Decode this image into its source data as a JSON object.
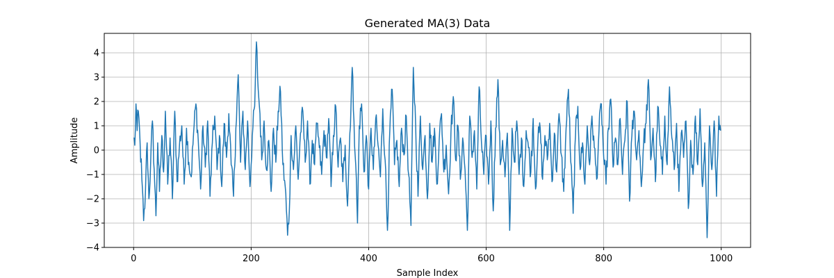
{
  "chart_data": {
    "type": "line",
    "title": "Generated MA(3) Data",
    "xlabel": "Sample Index",
    "ylabel": "Amplitude",
    "xlim": [
      -50,
      1050
    ],
    "ylim": [
      -4,
      4.8
    ],
    "xticks": [
      0,
      200,
      400,
      600,
      800,
      1000
    ],
    "xtick_labels": [
      "0",
      "200",
      "400",
      "600",
      "800",
      "1000"
    ],
    "yticks": [
      -4,
      -3,
      -2,
      -1,
      0,
      1,
      2,
      3,
      4
    ],
    "ytick_labels": [
      "−4",
      "−3",
      "−2",
      "−1",
      "0",
      "1",
      "2",
      "3",
      "4"
    ],
    "grid": true,
    "series": [
      {
        "color": "#1f77b4",
        "x_start": 0,
        "x_step": 1,
        "n_points": 1000,
        "anchors": [
          [
            0,
            0.5
          ],
          [
            2,
            0.2
          ],
          [
            4,
            1.9
          ],
          [
            6,
            0.8
          ],
          [
            8,
            1.6
          ],
          [
            11,
            0.3
          ],
          [
            14,
            -1.2
          ],
          [
            17,
            -2.9
          ],
          [
            19,
            -2.4
          ],
          [
            21,
            -0.9
          ],
          [
            23,
            0.3
          ],
          [
            26,
            -2.0
          ],
          [
            29,
            -0.5
          ],
          [
            32,
            1.2
          ],
          [
            35,
            -0.8
          ],
          [
            38,
            -2.7
          ],
          [
            41,
            0.3
          ],
          [
            44,
            -1.7
          ],
          [
            48,
            0.6
          ],
          [
            51,
            -0.9
          ],
          [
            54,
            1.6
          ],
          [
            58,
            -1.4
          ],
          [
            62,
            0.5
          ],
          [
            66,
            -2.0
          ],
          [
            70,
            1.6
          ],
          [
            74,
            -1.3
          ],
          [
            78,
            0.2
          ],
          [
            82,
            1.0
          ],
          [
            86,
            -1.4
          ],
          [
            90,
            0.9
          ],
          [
            94,
            -0.5
          ],
          [
            98,
            -1.1
          ],
          [
            102,
            0.7
          ],
          [
            106,
            1.9
          ],
          [
            110,
            0.4
          ],
          [
            114,
            -1.6
          ],
          [
            118,
            1.0
          ],
          [
            122,
            -0.7
          ],
          [
            126,
            1.2
          ],
          [
            130,
            -1.9
          ],
          [
            134,
            0.3
          ],
          [
            138,
            1.4
          ],
          [
            142,
            -0.8
          ],
          [
            146,
            0.6
          ],
          [
            150,
            -1.5
          ],
          [
            154,
            1.1
          ],
          [
            158,
            -0.3
          ],
          [
            162,
            1.5
          ],
          [
            166,
            -0.6
          ],
          [
            170,
            -1.9
          ],
          [
            174,
            0.9
          ],
          [
            178,
            3.1
          ],
          [
            182,
            -0.5
          ],
          [
            186,
            1.6
          ],
          [
            190,
            -0.8
          ],
          [
            194,
            1.2
          ],
          [
            198,
            -1.5
          ],
          [
            202,
            0.6
          ],
          [
            206,
            1.8
          ],
          [
            209,
            4.45
          ],
          [
            212,
            2.5
          ],
          [
            215,
            1.5
          ],
          [
            218,
            -0.4
          ],
          [
            222,
            1.2
          ],
          [
            226,
            -0.8
          ],
          [
            230,
            0.4
          ],
          [
            234,
            -1.7
          ],
          [
            238,
            0.9
          ],
          [
            242,
            -0.5
          ],
          [
            246,
            1.6
          ],
          [
            250,
            2.4
          ],
          [
            254,
            -0.6
          ],
          [
            258,
            -1.5
          ],
          [
            262,
            -3.5
          ],
          [
            265,
            -2.5
          ],
          [
            268,
            0.6
          ],
          [
            272,
            -0.8
          ],
          [
            276,
            1.0
          ],
          [
            280,
            -1.2
          ],
          [
            284,
            0.7
          ],
          [
            288,
            1.6
          ],
          [
            292,
            -0.5
          ],
          [
            296,
            1.2
          ],
          [
            300,
            -1.4
          ],
          [
            304,
            0.4
          ],
          [
            308,
            -0.6
          ],
          [
            312,
            1.1
          ],
          [
            316,
            0.1
          ],
          [
            320,
            -1.0
          ],
          [
            324,
            0.8
          ],
          [
            328,
            -0.3
          ],
          [
            332,
            1.3
          ],
          [
            336,
            -1.5
          ],
          [
            340,
            0.6
          ],
          [
            344,
            1.8
          ],
          [
            348,
            -0.7
          ],
          [
            352,
            0.5
          ],
          [
            356,
            -1.3
          ],
          [
            360,
            0.2
          ],
          [
            364,
            -2.3
          ],
          [
            368,
            0.7
          ],
          [
            372,
            3.4
          ],
          [
            375,
            1.2
          ],
          [
            378,
            -0.6
          ],
          [
            381,
            -3.0
          ],
          [
            384,
            1.0
          ],
          [
            388,
            1.9
          ],
          [
            392,
            -0.9
          ],
          [
            396,
            0.6
          ],
          [
            400,
            -1.6
          ],
          [
            404,
            0.9
          ],
          [
            408,
            -0.8
          ],
          [
            412,
            1.3
          ],
          [
            416,
            0.2
          ],
          [
            420,
            -1.1
          ],
          [
            424,
            1.7
          ],
          [
            428,
            -0.4
          ],
          [
            432,
            -3.3
          ],
          [
            436,
            0.8
          ],
          [
            440,
            2.5
          ],
          [
            444,
            -0.6
          ],
          [
            448,
            0.4
          ],
          [
            452,
            -1.5
          ],
          [
            456,
            0.9
          ],
          [
            460,
            -0.2
          ],
          [
            464,
            1.4
          ],
          [
            468,
            -1.0
          ],
          [
            472,
            -3.1
          ],
          [
            476,
            3.4
          ],
          [
            480,
            1.0
          ],
          [
            484,
            -1.9
          ],
          [
            488,
            1.4
          ],
          [
            492,
            -0.8
          ],
          [
            496,
            0.6
          ],
          [
            500,
            -2.0
          ],
          [
            504,
            1.1
          ],
          [
            508,
            -0.5
          ],
          [
            512,
            0.9
          ],
          [
            516,
            -1.4
          ],
          [
            520,
            0.4
          ],
          [
            524,
            1.5
          ],
          [
            528,
            -0.9
          ],
          [
            532,
            0.2
          ],
          [
            536,
            -1.8
          ],
          [
            540,
            0.7
          ],
          [
            544,
            2.2
          ],
          [
            548,
            -0.4
          ],
          [
            552,
            1.0
          ],
          [
            556,
            -1.2
          ],
          [
            560,
            0.5
          ],
          [
            564,
            -0.8
          ],
          [
            568,
            -3.3
          ],
          [
            572,
            1.4
          ],
          [
            576,
            -0.3
          ],
          [
            580,
            0.8
          ],
          [
            584,
            -1.6
          ],
          [
            588,
            2.6
          ],
          [
            592,
            0.3
          ],
          [
            596,
            -1.0
          ],
          [
            600,
            0.6
          ],
          [
            604,
            -1.4
          ],
          [
            608,
            1.2
          ],
          [
            612,
            -2.5
          ],
          [
            616,
            0.9
          ],
          [
            620,
            2.9
          ],
          [
            624,
            -0.6
          ],
          [
            628,
            0.4
          ],
          [
            632,
            -1.1
          ],
          [
            636,
            0.7
          ],
          [
            640,
            -3.3
          ],
          [
            644,
            0.9
          ],
          [
            648,
            -0.5
          ],
          [
            652,
            1.2
          ],
          [
            656,
            -1.0
          ],
          [
            660,
            0.5
          ],
          [
            664,
            -1.5
          ],
          [
            668,
            0.8
          ],
          [
            672,
            0.1
          ],
          [
            676,
            -0.9
          ],
          [
            680,
            1.3
          ],
          [
            684,
            -1.6
          ],
          [
            688,
            0.4
          ],
          [
            692,
            0.9
          ],
          [
            696,
            -1.2
          ],
          [
            700,
            0.6
          ],
          [
            704,
            -0.4
          ],
          [
            708,
            1.1
          ],
          [
            712,
            -1.3
          ],
          [
            716,
            0.7
          ],
          [
            720,
            -0.9
          ],
          [
            724,
            1.5
          ],
          [
            728,
            -0.2
          ],
          [
            732,
            -1.7
          ],
          [
            736,
            0.9
          ],
          [
            740,
            2.5
          ],
          [
            744,
            -0.5
          ],
          [
            748,
            -2.6
          ],
          [
            752,
            0.6
          ],
          [
            756,
            1.8
          ],
          [
            760,
            -0.8
          ],
          [
            764,
            0.3
          ],
          [
            768,
            -1.4
          ],
          [
            772,
            1.0
          ],
          [
            776,
            -0.6
          ],
          [
            780,
            1.4
          ],
          [
            784,
            0.1
          ],
          [
            788,
            -1.2
          ],
          [
            792,
            0.8
          ],
          [
            796,
            1.9
          ],
          [
            800,
            -0.3
          ],
          [
            804,
            -1.4
          ],
          [
            808,
            0.9
          ],
          [
            812,
            2.1
          ],
          [
            816,
            -0.7
          ],
          [
            820,
            0.5
          ],
          [
            824,
            -0.6
          ],
          [
            828,
            1.3
          ],
          [
            832,
            -1.0
          ],
          [
            836,
            0.4
          ],
          [
            840,
            2.0
          ],
          [
            844,
            -2.1
          ],
          [
            848,
            0.6
          ],
          [
            852,
            1.6
          ],
          [
            856,
            -0.4
          ],
          [
            860,
            0.8
          ],
          [
            864,
            -1.5
          ],
          [
            868,
            0.3
          ],
          [
            872,
            1.1
          ],
          [
            876,
            2.9
          ],
          [
            880,
            -0.4
          ],
          [
            884,
            0.9
          ],
          [
            888,
            -1.3
          ],
          [
            892,
            1.8
          ],
          [
            896,
            0.2
          ],
          [
            900,
            -1.0
          ],
          [
            904,
            1.4
          ],
          [
            908,
            -0.6
          ],
          [
            912,
            2.6
          ],
          [
            916,
            0.5
          ],
          [
            920,
            -0.8
          ],
          [
            924,
            1.1
          ],
          [
            928,
            -1.7
          ],
          [
            932,
            0.7
          ],
          [
            936,
            -0.3
          ],
          [
            940,
            1.2
          ],
          [
            944,
            -2.4
          ],
          [
            948,
            0.4
          ],
          [
            952,
            -1.0
          ],
          [
            956,
            1.4
          ],
          [
            960,
            -0.6
          ],
          [
            964,
            1.7
          ],
          [
            968,
            -1.5
          ],
          [
            972,
            0.3
          ],
          [
            976,
            -3.6
          ],
          [
            980,
            1.0
          ],
          [
            984,
            -0.8
          ],
          [
            988,
            1.2
          ],
          [
            992,
            -1.9
          ],
          [
            996,
            1.4
          ],
          [
            999,
            0.8
          ]
        ]
      }
    ]
  }
}
